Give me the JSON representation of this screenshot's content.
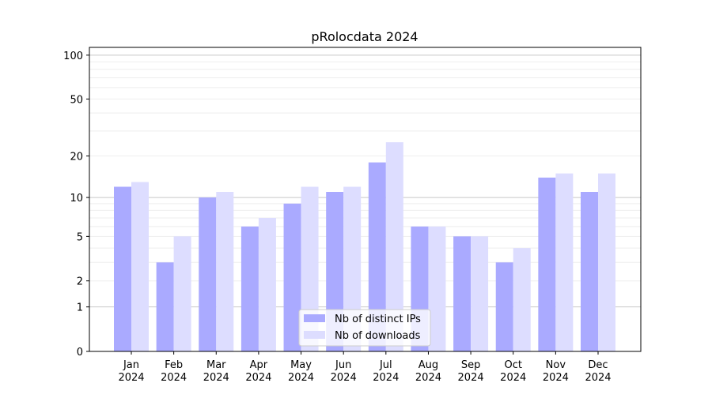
{
  "chart_data": {
    "type": "bar",
    "title": "pRolocdata 2024",
    "xlabel": "",
    "ylabel": "",
    "yscale": "log10(1+y)",
    "ylim": [
      0,
      113
    ],
    "yticks": [
      0,
      1,
      2,
      5,
      10,
      20,
      50,
      100
    ],
    "grid": true,
    "legend_placement": "bottom-center",
    "categories": [
      "Jan\n2024",
      "Feb\n2024",
      "Mar\n2024",
      "Apr\n2024",
      "May\n2024",
      "Jun\n2024",
      "Jul\n2024",
      "Aug\n2024",
      "Sep\n2024",
      "Oct\n2024",
      "Nov\n2024",
      "Dec\n2024"
    ],
    "series": [
      {
        "name": "Nb of distinct IPs",
        "color": "#aaaaff",
        "values": [
          12,
          3,
          10,
          6,
          9,
          11,
          18,
          6,
          5,
          3,
          14,
          11
        ]
      },
      {
        "name": "Nb of downloads",
        "color": "#ddddff",
        "values": [
          13,
          5,
          11,
          7,
          12,
          12,
          25,
          6,
          5,
          4,
          15,
          15
        ]
      }
    ]
  }
}
